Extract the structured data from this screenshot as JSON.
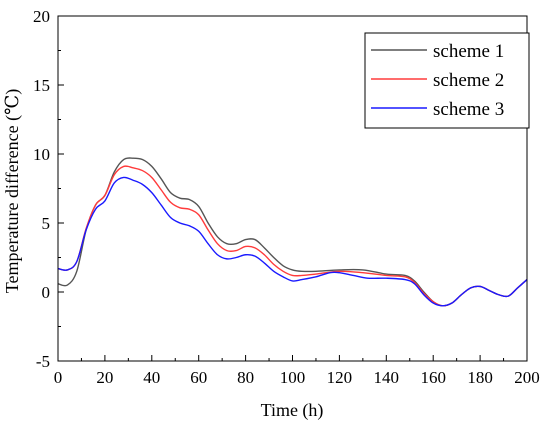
{
  "chart_data": {
    "type": "line",
    "xlabel": "Time (h)",
    "ylabel": "Temperature difference (℃)",
    "xlim": [
      0,
      200
    ],
    "ylim": [
      -5,
      20
    ],
    "x_ticks": [
      "0",
      "20",
      "40",
      "60",
      "80",
      "100",
      "120",
      "140",
      "160",
      "180",
      "200"
    ],
    "y_ticks": [
      "-5",
      "0",
      "5",
      "10",
      "15",
      "20"
    ],
    "grid": false,
    "legend_position": "top-right",
    "series": [
      {
        "name": "scheme 1",
        "color": "#555555",
        "points": [
          [
            0,
            0.6
          ],
          [
            4,
            0.5
          ],
          [
            8,
            1.5
          ],
          [
            12,
            4.5
          ],
          [
            16,
            6.3
          ],
          [
            20,
            7.0
          ],
          [
            24,
            8.7
          ],
          [
            28,
            9.6
          ],
          [
            32,
            9.7
          ],
          [
            36,
            9.6
          ],
          [
            40,
            9.1
          ],
          [
            44,
            8.2
          ],
          [
            48,
            7.2
          ],
          [
            52,
            6.8
          ],
          [
            56,
            6.7
          ],
          [
            60,
            6.2
          ],
          [
            64,
            5.0
          ],
          [
            68,
            4.0
          ],
          [
            72,
            3.5
          ],
          [
            76,
            3.5
          ],
          [
            80,
            3.8
          ],
          [
            84,
            3.8
          ],
          [
            88,
            3.2
          ],
          [
            92,
            2.5
          ],
          [
            96,
            1.9
          ],
          [
            100,
            1.6
          ],
          [
            104,
            1.5
          ],
          [
            110,
            1.5
          ],
          [
            120,
            1.6
          ],
          [
            130,
            1.6
          ],
          [
            140,
            1.3
          ],
          [
            148,
            1.2
          ],
          [
            152,
            0.8
          ],
          [
            156,
            0.0
          ],
          [
            160,
            -0.7
          ],
          [
            164,
            -1.0
          ],
          [
            168,
            -0.8
          ],
          [
            172,
            -0.2
          ],
          [
            176,
            0.3
          ],
          [
            180,
            0.4
          ],
          [
            184,
            0.1
          ],
          [
            188,
            -0.2
          ],
          [
            192,
            -0.3
          ],
          [
            196,
            0.3
          ],
          [
            200,
            0.9
          ]
        ]
      },
      {
        "name": "scheme 2",
        "color": "#ff3b3b",
        "points": [
          [
            0,
            1.7
          ],
          [
            4,
            1.6
          ],
          [
            8,
            2.2
          ],
          [
            12,
            4.6
          ],
          [
            16,
            6.3
          ],
          [
            20,
            7.0
          ],
          [
            24,
            8.5
          ],
          [
            28,
            9.1
          ],
          [
            32,
            9.0
          ],
          [
            36,
            8.8
          ],
          [
            40,
            8.3
          ],
          [
            44,
            7.4
          ],
          [
            48,
            6.5
          ],
          [
            52,
            6.1
          ],
          [
            56,
            6.0
          ],
          [
            60,
            5.6
          ],
          [
            64,
            4.5
          ],
          [
            68,
            3.5
          ],
          [
            72,
            3.0
          ],
          [
            76,
            3.0
          ],
          [
            80,
            3.3
          ],
          [
            84,
            3.2
          ],
          [
            88,
            2.7
          ],
          [
            92,
            2.0
          ],
          [
            96,
            1.5
          ],
          [
            100,
            1.2
          ],
          [
            104,
            1.2
          ],
          [
            110,
            1.3
          ],
          [
            120,
            1.5
          ],
          [
            130,
            1.4
          ],
          [
            140,
            1.2
          ],
          [
            148,
            1.1
          ],
          [
            152,
            0.7
          ],
          [
            156,
            -0.1
          ],
          [
            160,
            -0.7
          ],
          [
            164,
            -1.0
          ],
          [
            168,
            -0.8
          ],
          [
            172,
            -0.2
          ],
          [
            176,
            0.3
          ],
          [
            180,
            0.4
          ],
          [
            184,
            0.1
          ],
          [
            188,
            -0.2
          ],
          [
            192,
            -0.3
          ],
          [
            196,
            0.3
          ],
          [
            200,
            0.9
          ]
        ]
      },
      {
        "name": "scheme 3",
        "color": "#1a1aff",
        "points": [
          [
            0,
            1.7
          ],
          [
            4,
            1.6
          ],
          [
            8,
            2.2
          ],
          [
            12,
            4.5
          ],
          [
            16,
            6.0
          ],
          [
            20,
            6.6
          ],
          [
            24,
            7.9
          ],
          [
            28,
            8.3
          ],
          [
            32,
            8.1
          ],
          [
            36,
            7.8
          ],
          [
            40,
            7.2
          ],
          [
            44,
            6.3
          ],
          [
            48,
            5.4
          ],
          [
            52,
            5.0
          ],
          [
            56,
            4.8
          ],
          [
            60,
            4.4
          ],
          [
            64,
            3.5
          ],
          [
            68,
            2.7
          ],
          [
            72,
            2.4
          ],
          [
            76,
            2.5
          ],
          [
            80,
            2.7
          ],
          [
            84,
            2.6
          ],
          [
            88,
            2.1
          ],
          [
            92,
            1.5
          ],
          [
            96,
            1.1
          ],
          [
            100,
            0.8
          ],
          [
            104,
            0.9
          ],
          [
            110,
            1.1
          ],
          [
            116,
            1.4
          ],
          [
            120,
            1.4
          ],
          [
            126,
            1.2
          ],
          [
            132,
            1.0
          ],
          [
            140,
            1.0
          ],
          [
            148,
            0.9
          ],
          [
            152,
            0.6
          ],
          [
            156,
            -0.2
          ],
          [
            160,
            -0.8
          ],
          [
            164,
            -1.0
          ],
          [
            168,
            -0.8
          ],
          [
            172,
            -0.2
          ],
          [
            176,
            0.3
          ],
          [
            180,
            0.4
          ],
          [
            184,
            0.1
          ],
          [
            188,
            -0.2
          ],
          [
            192,
            -0.3
          ],
          [
            196,
            0.3
          ],
          [
            200,
            0.9
          ]
        ]
      }
    ]
  }
}
